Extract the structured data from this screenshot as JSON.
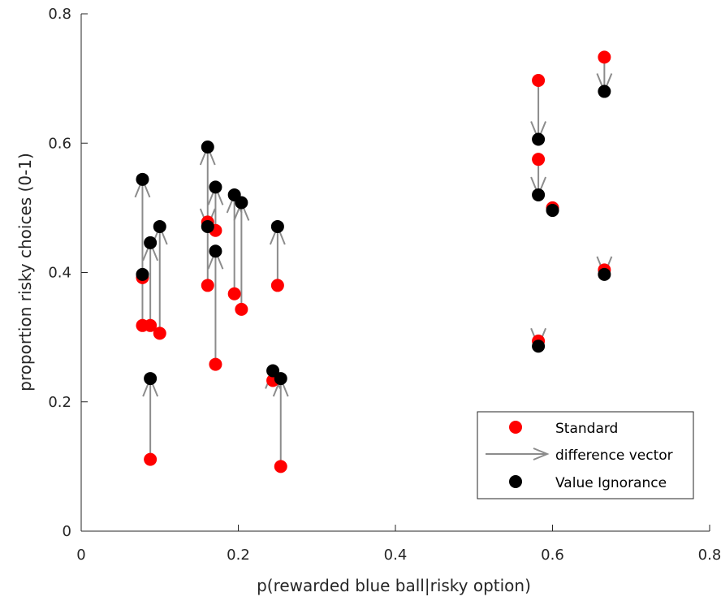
{
  "chart_data": {
    "type": "scatter",
    "title": "",
    "xlabel": "p(rewarded blue ball|risky option)",
    "ylabel": "proportion risky choices  (0-1)",
    "xlim": [
      0,
      0.8
    ],
    "ylim": [
      0,
      0.8
    ],
    "xticks": [
      "0",
      "0.2",
      "0.4",
      "0.6",
      "0.8"
    ],
    "yticks": [
      "0",
      "0.2",
      "0.4",
      "0.6",
      "0.8"
    ],
    "grid": false,
    "legend_position": "bottom-right",
    "legend": {
      "standard": "Standard",
      "difference": "difference vector",
      "ignorance": "Value Ignorance"
    },
    "colors": {
      "standard": "#ff0000",
      "ignorance": "#000000",
      "arrow": "#8c8c8c",
      "axis": "#262626"
    },
    "pairs": [
      {
        "x": 0.078,
        "standard": 0.392,
        "ignorance": 0.397
      },
      {
        "x": 0.078,
        "standard": 0.318,
        "ignorance": 0.544
      },
      {
        "x": 0.088,
        "standard": 0.318,
        "ignorance": 0.446
      },
      {
        "x": 0.088,
        "standard": 0.111,
        "ignorance": 0.236
      },
      {
        "x": 0.1,
        "standard": 0.306,
        "ignorance": 0.471
      },
      {
        "x": 0.161,
        "standard": 0.38,
        "ignorance": 0.594
      },
      {
        "x": 0.161,
        "standard": 0.478,
        "ignorance": 0.471
      },
      {
        "x": 0.171,
        "standard": 0.465,
        "ignorance": 0.532
      },
      {
        "x": 0.171,
        "standard": 0.258,
        "ignorance": 0.433
      },
      {
        "x": 0.195,
        "standard": 0.367,
        "ignorance": 0.52
      },
      {
        "x": 0.204,
        "standard": 0.343,
        "ignorance": 0.508
      },
      {
        "x": 0.244,
        "standard": 0.233,
        "ignorance": 0.248
      },
      {
        "x": 0.25,
        "standard": 0.38,
        "ignorance": 0.471
      },
      {
        "x": 0.254,
        "standard": 0.1,
        "ignorance": 0.236
      },
      {
        "x": 0.582,
        "standard": 0.697,
        "ignorance": 0.606
      },
      {
        "x": 0.582,
        "standard": 0.575,
        "ignorance": 0.52
      },
      {
        "x": 0.582,
        "standard": 0.294,
        "ignorance": 0.286
      },
      {
        "x": 0.6,
        "standard": 0.5,
        "ignorance": 0.496
      },
      {
        "x": 0.666,
        "standard": 0.733,
        "ignorance": 0.68
      },
      {
        "x": 0.666,
        "standard": 0.404,
        "ignorance": 0.397
      }
    ]
  }
}
